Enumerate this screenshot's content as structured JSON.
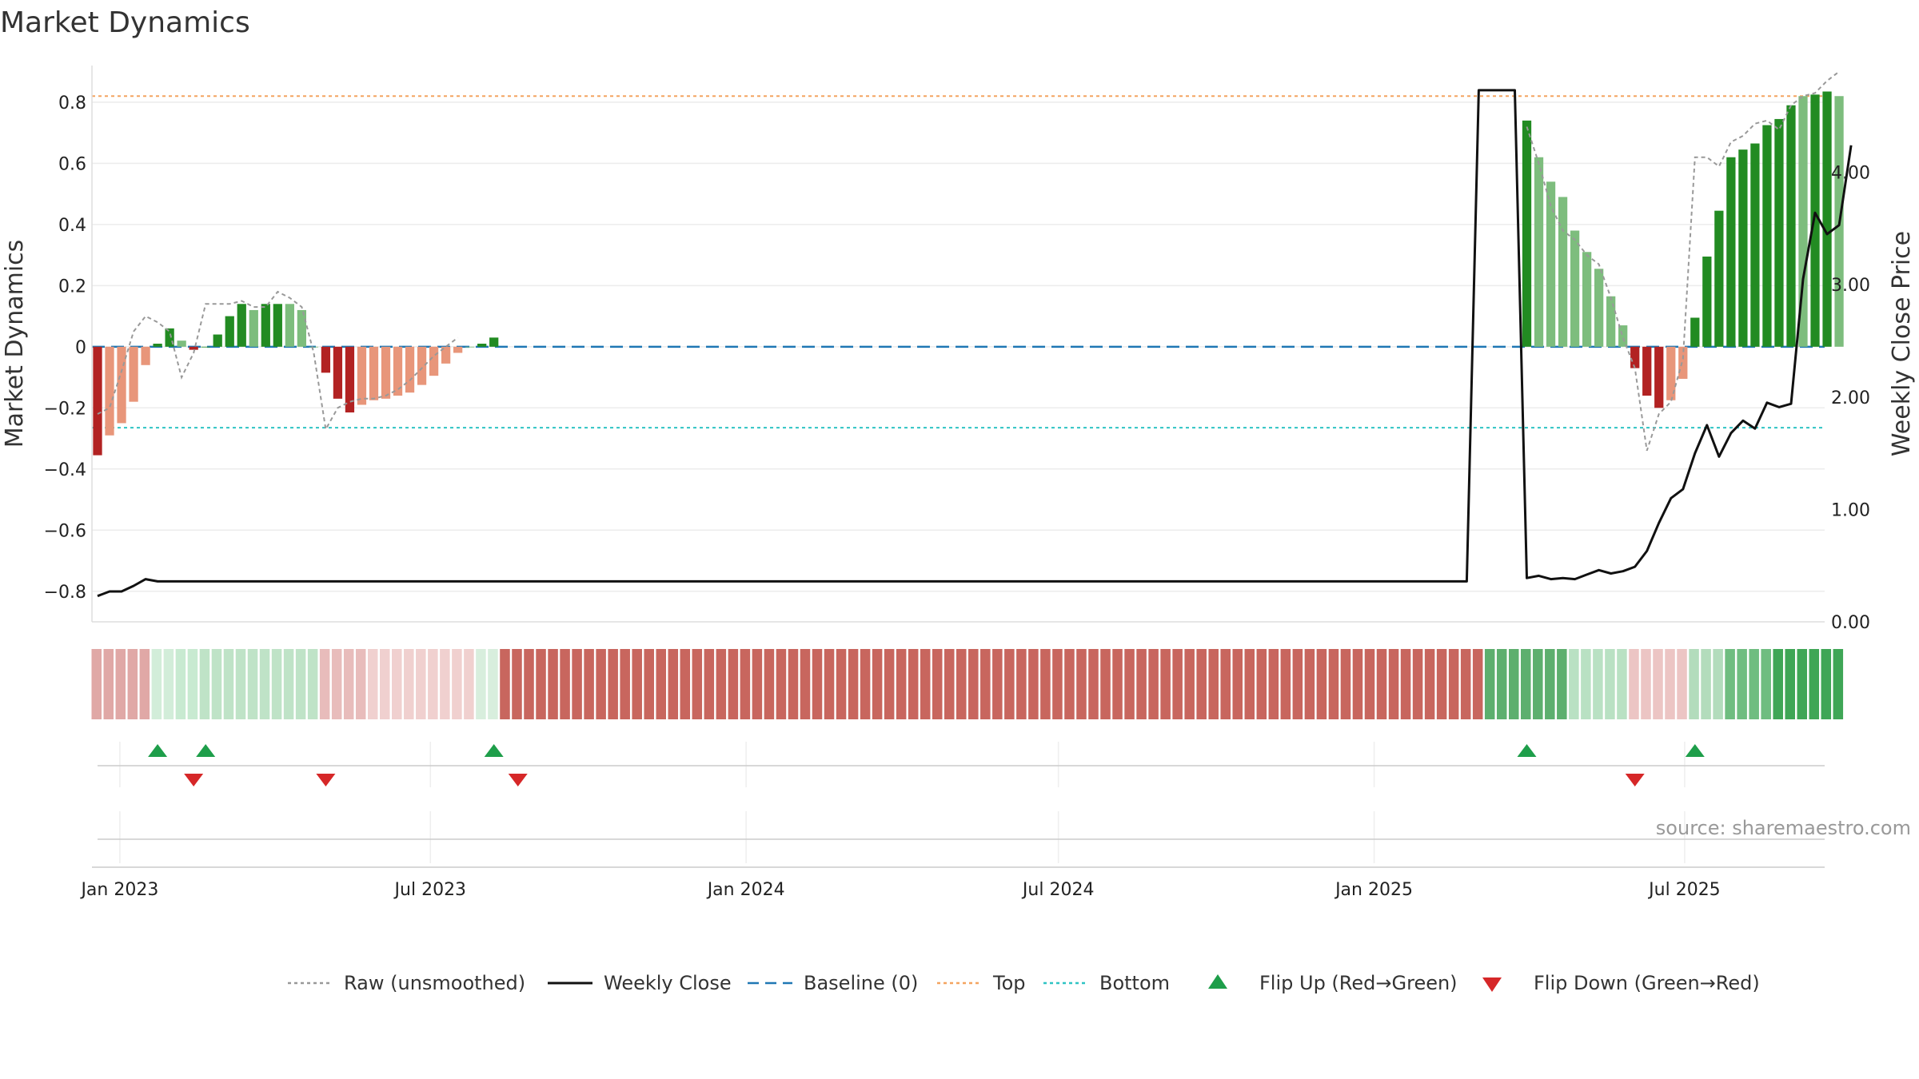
{
  "title": "Market Dynamics",
  "source": "source: sharemaestro.com",
  "chart_data": {
    "type": "bar",
    "title": "Market Dynamics",
    "ylabel": "Market Dynamics",
    "y2label": "Weekly Close Price",
    "ylim": [
      -0.9,
      0.92
    ],
    "y2lim": [
      0,
      4.95
    ],
    "yticks": [
      -0.8,
      -0.6,
      -0.4,
      -0.2,
      0,
      0.2,
      0.4,
      0.6,
      0.8
    ],
    "ytick_labels": [
      "−0.8",
      "−0.6",
      "−0.4",
      "−0.2",
      "0",
      "0.2",
      "0.4",
      "0.6",
      "0.8"
    ],
    "y2ticks": [
      0,
      1,
      2,
      3,
      4
    ],
    "y2tick_labels": [
      "0.00",
      "1.00",
      "2.00",
      "3.00",
      "4.00"
    ],
    "x_start": "2022-12-19",
    "x_end": "2025-09-08",
    "xticks": [
      "2023-01-01",
      "2023-07-01",
      "2024-01-01",
      "2024-07-01",
      "2025-01-01",
      "2025-07-01"
    ],
    "xtick_labels": [
      "Jan 2023",
      "Jul 2023",
      "Jan 2024",
      "Jul 2024",
      "Jan 2025",
      "Jul 2025"
    ],
    "grid": true,
    "top_level": 0.82,
    "bottom_level": -0.265,
    "baseline": 0,
    "bars": [
      {
        "date": "2022-12-19",
        "value": -0.355,
        "shade": "dark"
      },
      {
        "date": "2022-12-26",
        "value": -0.29,
        "shade": "light"
      },
      {
        "date": "2023-01-02",
        "value": -0.25,
        "shade": "light"
      },
      {
        "date": "2023-01-09",
        "value": -0.18,
        "shade": "light"
      },
      {
        "date": "2023-01-16",
        "value": -0.06,
        "shade": "light"
      },
      {
        "date": "2023-01-23",
        "value": 0.01,
        "shade": "dark"
      },
      {
        "date": "2023-01-30",
        "value": 0.06,
        "shade": "dark"
      },
      {
        "date": "2023-02-06",
        "value": 0.02,
        "shade": "light"
      },
      {
        "date": "2023-02-13",
        "value": -0.01,
        "shade": "dark"
      },
      {
        "date": "2023-02-20",
        "value": 0.0,
        "shade": "dark"
      },
      {
        "date": "2023-02-27",
        "value": 0.04,
        "shade": "dark"
      },
      {
        "date": "2023-03-06",
        "value": 0.1,
        "shade": "dark"
      },
      {
        "date": "2023-03-13",
        "value": 0.14,
        "shade": "dark"
      },
      {
        "date": "2023-03-20",
        "value": 0.12,
        "shade": "light"
      },
      {
        "date": "2023-03-27",
        "value": 0.14,
        "shade": "dark"
      },
      {
        "date": "2023-04-03",
        "value": 0.14,
        "shade": "dark"
      },
      {
        "date": "2023-04-10",
        "value": 0.14,
        "shade": "light"
      },
      {
        "date": "2023-04-17",
        "value": 0.12,
        "shade": "light"
      },
      {
        "date": "2023-04-24",
        "value": 0.0,
        "shade": "light"
      },
      {
        "date": "2023-05-01",
        "value": -0.085,
        "shade": "dark"
      },
      {
        "date": "2023-05-08",
        "value": -0.17,
        "shade": "dark"
      },
      {
        "date": "2023-05-15",
        "value": -0.215,
        "shade": "dark"
      },
      {
        "date": "2023-05-22",
        "value": -0.19,
        "shade": "light"
      },
      {
        "date": "2023-05-29",
        "value": -0.175,
        "shade": "light"
      },
      {
        "date": "2023-06-05",
        "value": -0.17,
        "shade": "light"
      },
      {
        "date": "2023-06-12",
        "value": -0.16,
        "shade": "light"
      },
      {
        "date": "2023-06-19",
        "value": -0.15,
        "shade": "light"
      },
      {
        "date": "2023-06-26",
        "value": -0.125,
        "shade": "light"
      },
      {
        "date": "2023-07-03",
        "value": -0.095,
        "shade": "light"
      },
      {
        "date": "2023-07-10",
        "value": -0.055,
        "shade": "light"
      },
      {
        "date": "2023-07-17",
        "value": -0.02,
        "shade": "light"
      },
      {
        "date": "2023-07-24",
        "value": 0.0,
        "shade": "light"
      },
      {
        "date": "2023-07-31",
        "value": 0.01,
        "shade": "dark"
      },
      {
        "date": "2023-08-07",
        "value": 0.03,
        "shade": "dark"
      },
      {
        "date": "2025-03-31",
        "value": 0.74,
        "shade": "dark"
      },
      {
        "date": "2025-04-07",
        "value": 0.62,
        "shade": "light"
      },
      {
        "date": "2025-04-14",
        "value": 0.54,
        "shade": "light"
      },
      {
        "date": "2025-04-21",
        "value": 0.49,
        "shade": "light"
      },
      {
        "date": "2025-04-28",
        "value": 0.38,
        "shade": "light"
      },
      {
        "date": "2025-05-05",
        "value": 0.31,
        "shade": "light"
      },
      {
        "date": "2025-05-12",
        "value": 0.255,
        "shade": "light"
      },
      {
        "date": "2025-05-19",
        "value": 0.165,
        "shade": "light"
      },
      {
        "date": "2025-05-26",
        "value": 0.07,
        "shade": "light"
      },
      {
        "date": "2025-06-02",
        "value": -0.07,
        "shade": "dark"
      },
      {
        "date": "2025-06-09",
        "value": -0.16,
        "shade": "dark"
      },
      {
        "date": "2025-06-16",
        "value": -0.2,
        "shade": "dark"
      },
      {
        "date": "2025-06-23",
        "value": -0.175,
        "shade": "light"
      },
      {
        "date": "2025-06-30",
        "value": -0.105,
        "shade": "light"
      },
      {
        "date": "2025-07-07",
        "value": 0.095,
        "shade": "dark"
      },
      {
        "date": "2025-07-14",
        "value": 0.295,
        "shade": "dark"
      },
      {
        "date": "2025-07-21",
        "value": 0.445,
        "shade": "dark"
      },
      {
        "date": "2025-07-28",
        "value": 0.62,
        "shade": "dark"
      },
      {
        "date": "2025-08-04",
        "value": 0.645,
        "shade": "dark"
      },
      {
        "date": "2025-08-11",
        "value": 0.665,
        "shade": "dark"
      },
      {
        "date": "2025-08-18",
        "value": 0.725,
        "shade": "dark"
      },
      {
        "date": "2025-08-25",
        "value": 0.745,
        "shade": "dark"
      },
      {
        "date": "2025-09-01",
        "value": 0.79,
        "shade": "dark"
      },
      {
        "date": "2025-09-08",
        "value": 0.82,
        "shade": "light"
      },
      {
        "date": "2025-09-15",
        "value": 0.825,
        "shade": "dark"
      },
      {
        "date": "2025-09-22",
        "value": 0.835,
        "shade": "dark"
      },
      {
        "date": "2025-09-29",
        "value": 0.82,
        "shade": "light"
      }
    ],
    "raw_series": [
      [
        "2022-12-19",
        -0.22
      ],
      [
        "2022-12-26",
        -0.2
      ],
      [
        "2023-01-02",
        -0.08
      ],
      [
        "2023-01-09",
        0.05
      ],
      [
        "2023-01-16",
        0.1
      ],
      [
        "2023-01-23",
        0.08
      ],
      [
        "2023-01-30",
        0.05
      ],
      [
        "2023-02-06",
        -0.1
      ],
      [
        "2023-02-13",
        -0.02
      ],
      [
        "2023-02-20",
        0.14
      ],
      [
        "2023-02-27",
        0.14
      ],
      [
        "2023-03-06",
        0.14
      ],
      [
        "2023-03-13",
        0.15
      ],
      [
        "2023-03-20",
        0.13
      ],
      [
        "2023-03-27",
        0.13
      ],
      [
        "2023-04-03",
        0.18
      ],
      [
        "2023-04-10",
        0.16
      ],
      [
        "2023-04-17",
        0.13
      ],
      [
        "2023-04-24",
        -0.02
      ],
      [
        "2023-05-01",
        -0.27
      ],
      [
        "2023-05-08",
        -0.2
      ],
      [
        "2023-05-15",
        -0.18
      ],
      [
        "2023-05-22",
        -0.17
      ],
      [
        "2023-05-29",
        -0.17
      ],
      [
        "2023-06-05",
        -0.16
      ],
      [
        "2023-06-12",
        -0.14
      ],
      [
        "2023-06-19",
        -0.11
      ],
      [
        "2023-06-26",
        -0.07
      ],
      [
        "2023-07-03",
        -0.03
      ],
      [
        "2023-07-10",
        0.0
      ],
      [
        "2023-07-17",
        0.03
      ],
      [
        "2023-07-24",
        null
      ],
      [
        "2025-03-31",
        0.72
      ],
      [
        "2025-04-07",
        0.6
      ],
      [
        "2025-04-14",
        0.46
      ],
      [
        "2025-04-21",
        0.38
      ],
      [
        "2025-04-28",
        0.35
      ],
      [
        "2025-05-05",
        0.3
      ],
      [
        "2025-05-12",
        0.27
      ],
      [
        "2025-05-19",
        0.16
      ],
      [
        "2025-05-26",
        0.03
      ],
      [
        "2025-06-02",
        -0.07
      ],
      [
        "2025-06-09",
        -0.34
      ],
      [
        "2025-06-16",
        -0.22
      ],
      [
        "2025-06-23",
        -0.18
      ],
      [
        "2025-06-30",
        -0.04
      ],
      [
        "2025-07-07",
        0.62
      ],
      [
        "2025-07-14",
        0.62
      ],
      [
        "2025-07-21",
        0.59
      ],
      [
        "2025-07-28",
        0.67
      ],
      [
        "2025-08-04",
        0.69
      ],
      [
        "2025-08-11",
        0.73
      ],
      [
        "2025-08-18",
        0.74
      ],
      [
        "2025-08-25",
        0.71
      ],
      [
        "2025-09-01",
        0.79
      ],
      [
        "2025-09-08",
        0.82
      ],
      [
        "2025-09-15",
        0.83
      ],
      [
        "2025-09-22",
        0.87
      ],
      [
        "2025-09-29",
        0.9
      ]
    ],
    "weekly_close": [
      [
        "2022-12-19",
        0.23
      ],
      [
        "2022-12-26",
        0.27
      ],
      [
        "2023-01-02",
        0.27
      ],
      [
        "2023-01-09",
        0.32
      ],
      [
        "2023-01-16",
        0.38
      ],
      [
        "2023-01-23",
        0.36
      ],
      [
        "2023-02-06",
        0.36
      ],
      [
        "2025-02-24",
        0.36
      ],
      [
        "2025-03-03",
        4.73
      ],
      [
        "2025-03-24",
        4.73
      ],
      [
        "2025-03-31",
        0.39
      ],
      [
        "2025-04-07",
        0.41
      ],
      [
        "2025-04-14",
        0.38
      ],
      [
        "2025-04-21",
        0.39
      ],
      [
        "2025-04-28",
        0.38
      ],
      [
        "2025-05-05",
        0.42
      ],
      [
        "2025-05-12",
        0.46
      ],
      [
        "2025-05-19",
        0.43
      ],
      [
        "2025-05-26",
        0.45
      ],
      [
        "2025-06-02",
        0.49
      ],
      [
        "2025-06-09",
        0.63
      ],
      [
        "2025-06-16",
        0.88
      ],
      [
        "2025-06-23",
        1.1
      ],
      [
        "2025-06-30",
        1.18
      ],
      [
        "2025-07-07",
        1.5
      ],
      [
        "2025-07-14",
        1.75
      ],
      [
        "2025-07-21",
        1.47
      ],
      [
        "2025-07-28",
        1.68
      ],
      [
        "2025-08-04",
        1.79
      ],
      [
        "2025-08-11",
        1.72
      ],
      [
        "2025-08-18",
        1.95
      ],
      [
        "2025-08-25",
        1.91
      ],
      [
        "2025-09-01",
        1.94
      ],
      [
        "2025-09-08",
        3.05
      ],
      [
        "2025-09-15",
        3.64
      ],
      [
        "2025-09-22",
        3.45
      ],
      [
        "2025-09-29",
        3.53
      ],
      [
        "2025-10-06",
        4.24
      ]
    ],
    "regime_strip": [
      {
        "start": "2022-12-19",
        "weeks": 5,
        "color": "#e0a8a6"
      },
      {
        "start": "2023-01-23",
        "weeks": 2,
        "color": "#d2edd9"
      },
      {
        "start": "2023-02-06",
        "weeks": 2,
        "color": "#c8ead1"
      },
      {
        "start": "2023-02-20",
        "weeks": 10,
        "color": "#bfe3c7"
      },
      {
        "start": "2023-05-01",
        "weeks": 4,
        "color": "#e8bcbb"
      },
      {
        "start": "2023-05-29",
        "weeks": 9,
        "color": "#f0d0cf"
      },
      {
        "start": "2023-07-31",
        "weeks": 2,
        "color": "#d8eedd"
      },
      {
        "start": "2023-08-14",
        "weeks": 82,
        "color": "#c8665e"
      },
      {
        "start": "2025-03-10",
        "weeks": 7,
        "color": "#5daf6e"
      },
      {
        "start": "2025-04-28",
        "weeks": 5,
        "color": "#b9e1c3"
      },
      {
        "start": "2025-06-02",
        "weeks": 5,
        "color": "#ecc5c4"
      },
      {
        "start": "2025-07-07",
        "weeks": 3,
        "color": "#b3dcbc"
      },
      {
        "start": "2025-07-28",
        "weeks": 4,
        "color": "#6fbd80"
      },
      {
        "start": "2025-08-25",
        "weeks": 6,
        "color": "#3fa656"
      }
    ],
    "flip_up": [
      "2023-01-23",
      "2023-02-20",
      "2023-08-07",
      "2025-03-31",
      "2025-07-07"
    ],
    "flip_down": [
      "2023-02-13",
      "2023-05-01",
      "2023-08-21",
      "2025-06-02"
    ],
    "colors": {
      "pos_dark": "#228b22",
      "pos_light": "#7dbd7d",
      "neg_dark": "#b22222",
      "neg_light": "#e8967a",
      "raw": "#999999",
      "close": "#111111",
      "baseline": "#1f77b4",
      "top": "#f4a460",
      "bottom": "#2ec4c4",
      "flip_up": "#1e9e4a",
      "flip_down": "#d62728"
    },
    "legend": [
      {
        "label": "Raw (unsmoothed)",
        "kind": "dotted-line",
        "color": "#999999"
      },
      {
        "label": "Weekly Close",
        "kind": "solid-line",
        "color": "#111111"
      },
      {
        "label": "Baseline (0)",
        "kind": "dashed-line",
        "color": "#1f77b4"
      },
      {
        "label": "Top",
        "kind": "dotted-line",
        "color": "#f4a460"
      },
      {
        "label": "Bottom",
        "kind": "dotted-line",
        "color": "#2ec4c4"
      },
      {
        "label": "Flip Up (Red→Green)",
        "kind": "triangle-up",
        "color": "#1e9e4a"
      },
      {
        "label": "Flip Down (Green→Red)",
        "kind": "triangle-down",
        "color": "#d62728"
      }
    ],
    "legend_position": "bottom-center"
  }
}
